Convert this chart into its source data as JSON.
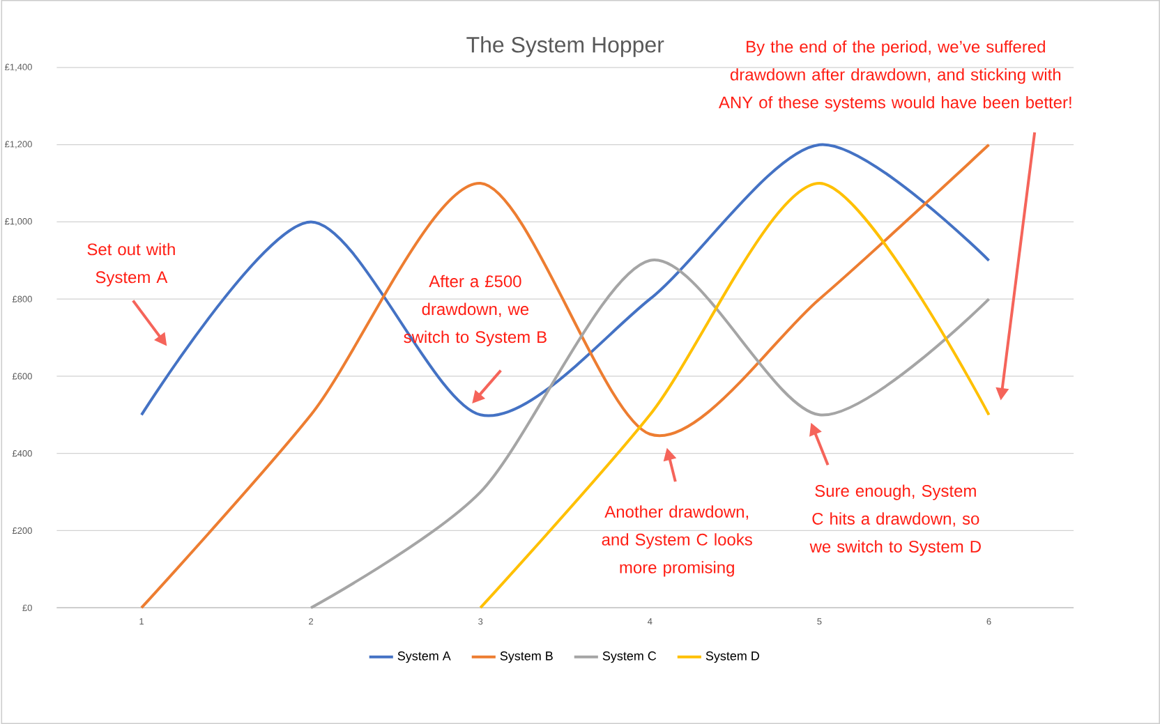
{
  "chart_data": {
    "type": "line",
    "title": "The System Hopper",
    "series": [
      {
        "name": "System A",
        "color": "#4472c4",
        "x": [
          1,
          2,
          3,
          4,
          5,
          6
        ],
        "values": [
          500,
          1000,
          500,
          800,
          1200,
          900
        ]
      },
      {
        "name": "System B",
        "color": "#ed7d31",
        "x": [
          1,
          2,
          3,
          4,
          5,
          6
        ],
        "values": [
          0,
          500,
          1100,
          450,
          800,
          1200
        ]
      },
      {
        "name": "System C",
        "color": "#a5a5a5",
        "x": [
          2,
          3,
          4,
          5,
          6
        ],
        "values": [
          0,
          300,
          900,
          500,
          800
        ]
      },
      {
        "name": "System D",
        "color": "#ffc000",
        "x": [
          3,
          4,
          5,
          6
        ],
        "values": [
          0,
          500,
          1100,
          500
        ]
      }
    ],
    "xlim": [
      0.5,
      6.5
    ],
    "xticks": [
      1,
      2,
      3,
      4,
      5,
      6
    ],
    "ylim": [
      0,
      1400
    ],
    "yticks": [
      {
        "value": 0,
        "label": "£0"
      },
      {
        "value": 200,
        "label": "£200"
      },
      {
        "value": 400,
        "label": "£400"
      },
      {
        "value": 600,
        "label": "£600"
      },
      {
        "value": 800,
        "label": "£800"
      },
      {
        "value": 1000,
        "label": "£1,000"
      },
      {
        "value": 1200,
        "label": "£1,200"
      },
      {
        "value": 1400,
        "label": "£1,400"
      }
    ],
    "grid": "y",
    "legend": "bottom",
    "marker": "none",
    "line_style": "solid",
    "annotations": [
      "Set out with System A",
      "After a £500 drawdown, we switch to System B",
      "Another drawdown, and System C looks more promising",
      "Sure enough, System C hits a drawdown, so we switch to System D",
      "By the end of the period, we’ve suffered drawdown after drawdown, and sticking with ANY of these systems would have been better!"
    ]
  }
}
